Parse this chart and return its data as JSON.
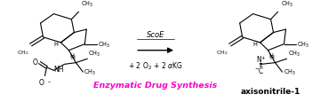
{
  "background_color": "#ffffff",
  "fig_width": 3.78,
  "fig_height": 1.16,
  "dpi": 100,
  "arrow_label_top": "ScoE",
  "arrow_label_bottom": "+ 2 O₂ + 2 αKG",
  "enzymatic_text": "Enzymatic Drug Synthesis",
  "enzymatic_color": "#ff00cc",
  "product_label": "axisonitrile-1",
  "lw": 0.8,
  "fontsize_label": 5.5,
  "fontsize_small": 4.8,
  "fontsize_enzymatic": 6.8,
  "fontsize_product": 6.5,
  "fontsize_arrow": 6.0
}
